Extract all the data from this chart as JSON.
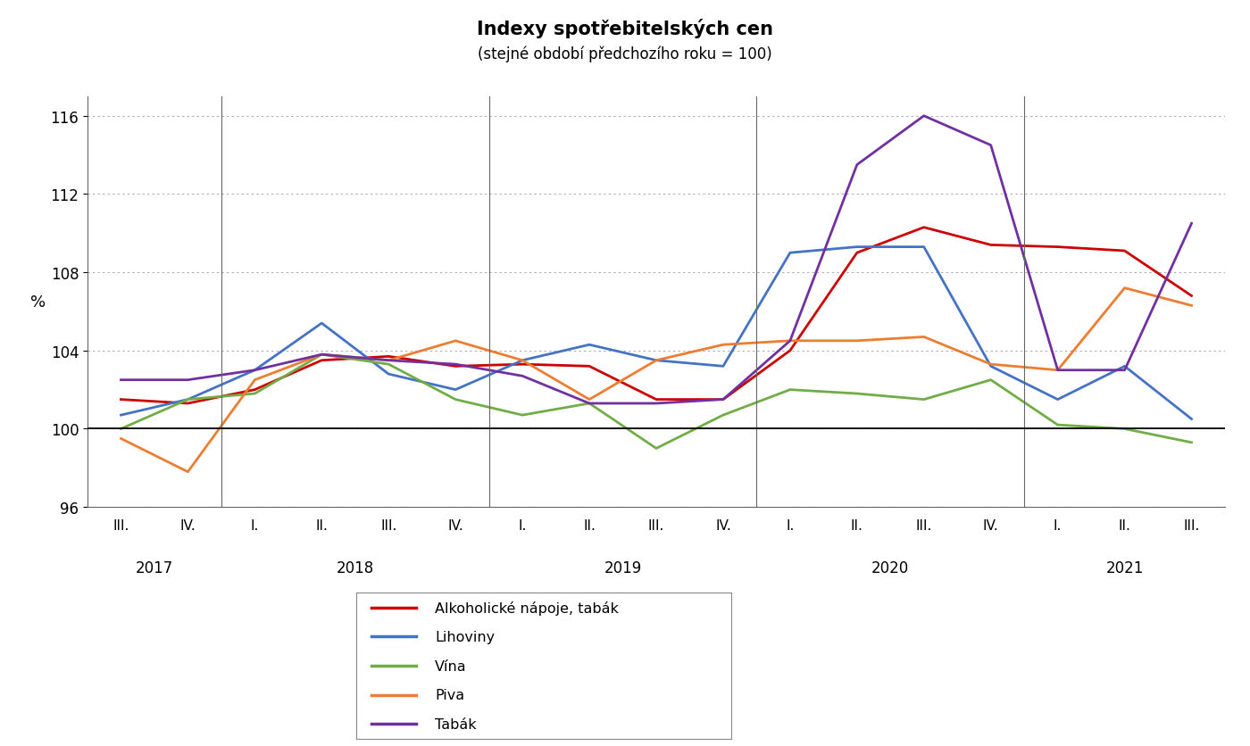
{
  "title": "Indexy spotřebitelských cen",
  "subtitle": "(stejné období předchozího roku = 100)",
  "ylabel": "%",
  "ylim": [
    96,
    117
  ],
  "yticks": [
    96,
    100,
    104,
    108,
    112,
    116
  ],
  "x_labels": [
    "III.",
    "IV.",
    "I.",
    "II.",
    "III.",
    "IV.",
    "I.",
    "II.",
    "III.",
    "IV.",
    "I.",
    "II.",
    "III.",
    "IV.",
    "I.",
    "II.",
    "III."
  ],
  "year_labels": [
    "2017",
    "2018",
    "2019",
    "2020",
    "2021"
  ],
  "year_positions": [
    0.5,
    3.5,
    7.5,
    11.5,
    15.0
  ],
  "year_dividers": [
    1.5,
    5.5,
    9.5,
    13.5
  ],
  "series": {
    "Alkoholické nápoje, tabák": {
      "color": "#cc0000",
      "values": [
        101.5,
        101.3,
        102.0,
        103.5,
        103.7,
        103.2,
        103.3,
        103.2,
        101.5,
        101.5,
        104.0,
        109.0,
        110.3,
        109.4,
        109.3,
        109.1,
        106.8
      ]
    },
    "Lihoviny": {
      "color": "#4472c4",
      "values": [
        100.7,
        101.5,
        103.0,
        105.4,
        102.8,
        102.0,
        103.5,
        104.3,
        103.5,
        103.2,
        109.0,
        109.3,
        109.3,
        103.2,
        101.5,
        103.2,
        100.5
      ]
    },
    "Vína": {
      "color": "#70ad47",
      "values": [
        100.0,
        101.5,
        101.8,
        103.8,
        103.3,
        101.5,
        100.7,
        101.3,
        99.0,
        100.7,
        102.0,
        101.8,
        101.5,
        102.5,
        100.2,
        100.0,
        99.3
      ]
    },
    "Piva": {
      "color": "#ed7d31",
      "values": [
        99.5,
        97.8,
        102.5,
        103.8,
        103.5,
        104.5,
        103.5,
        101.5,
        103.5,
        104.3,
        104.5,
        104.5,
        104.7,
        103.3,
        103.0,
        107.2,
        106.3
      ]
    },
    "Tabák": {
      "color": "#7030a0",
      "values": [
        102.5,
        102.5,
        103.0,
        103.8,
        103.5,
        103.3,
        102.7,
        101.3,
        101.3,
        101.5,
        104.5,
        113.5,
        116.0,
        114.5,
        103.0,
        103.0,
        110.5
      ]
    }
  }
}
